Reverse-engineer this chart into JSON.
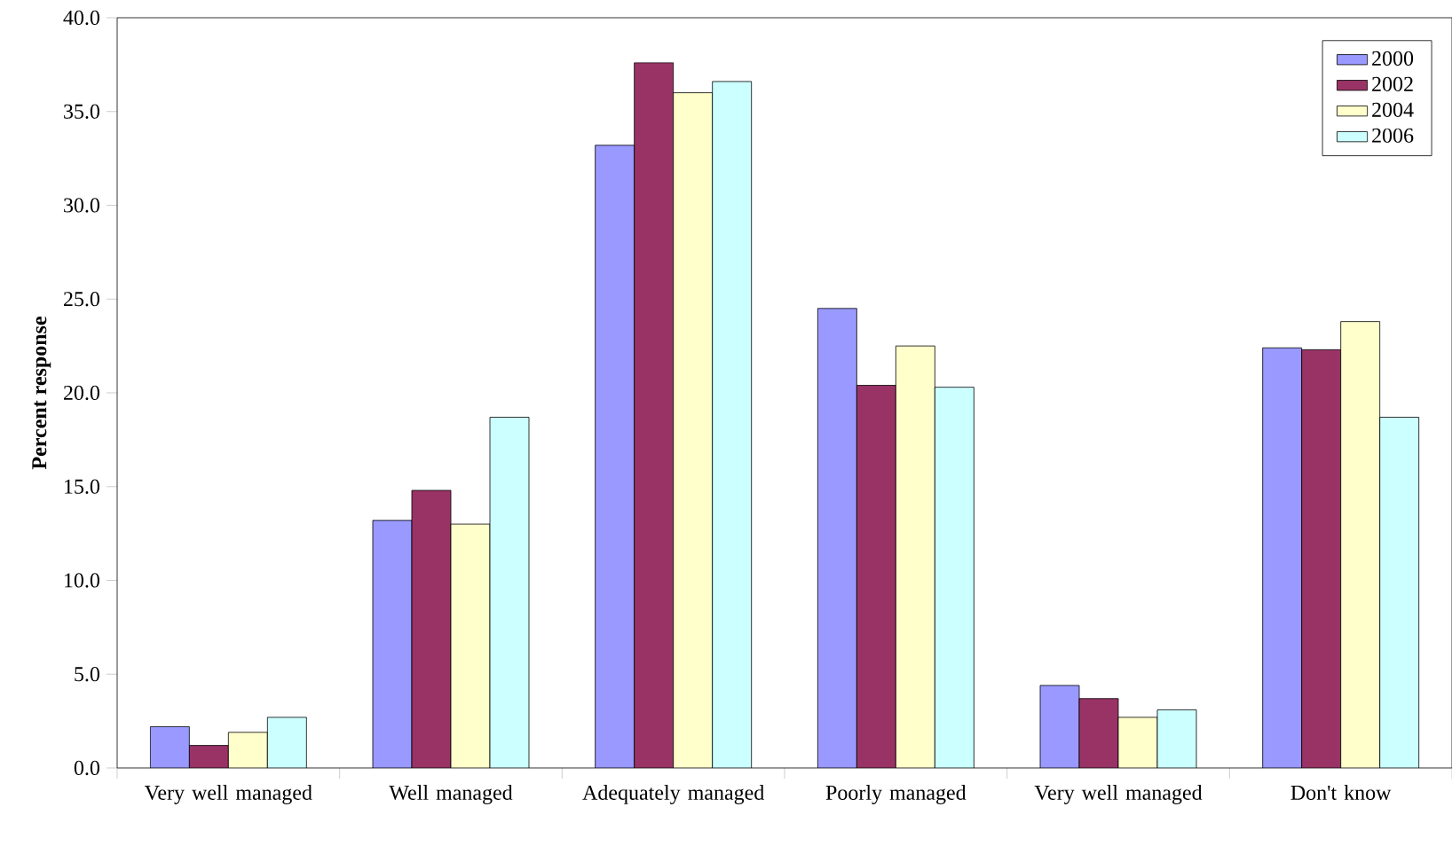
{
  "chart_data": {
    "type": "bar",
    "categories": [
      "Very well managed",
      "Well managed",
      "Adequately managed",
      "Poorly managed",
      "Very well managed",
      "Don't know"
    ],
    "series": [
      {
        "name": "2000",
        "color": "#9999ff",
        "values": [
          2.2,
          13.2,
          33.2,
          24.5,
          4.4,
          22.4
        ]
      },
      {
        "name": "2002",
        "color": "#993366",
        "values": [
          1.2,
          14.8,
          37.6,
          20.4,
          3.7,
          22.3
        ]
      },
      {
        "name": "2004",
        "color": "#ffffcc",
        "values": [
          1.9,
          13.0,
          36.0,
          22.5,
          2.7,
          23.8
        ]
      },
      {
        "name": "2006",
        "color": "#ccffff",
        "values": [
          2.7,
          18.7,
          36.6,
          20.3,
          3.1,
          18.7
        ]
      }
    ],
    "ylabel": "Percent response",
    "ylim": [
      0,
      40
    ],
    "yticks": [
      {
        "value": 0,
        "label": "0.0"
      },
      {
        "value": 5,
        "label": "5.0"
      },
      {
        "value": 10,
        "label": "10.0"
      },
      {
        "value": 15,
        "label": "15.0"
      },
      {
        "value": 20,
        "label": "20.0"
      },
      {
        "value": 25,
        "label": "25.0"
      },
      {
        "value": 30,
        "label": "30.0"
      },
      {
        "value": 35,
        "label": "35.0"
      },
      {
        "value": 40,
        "label": "40.0"
      }
    ],
    "legend": "top right"
  }
}
